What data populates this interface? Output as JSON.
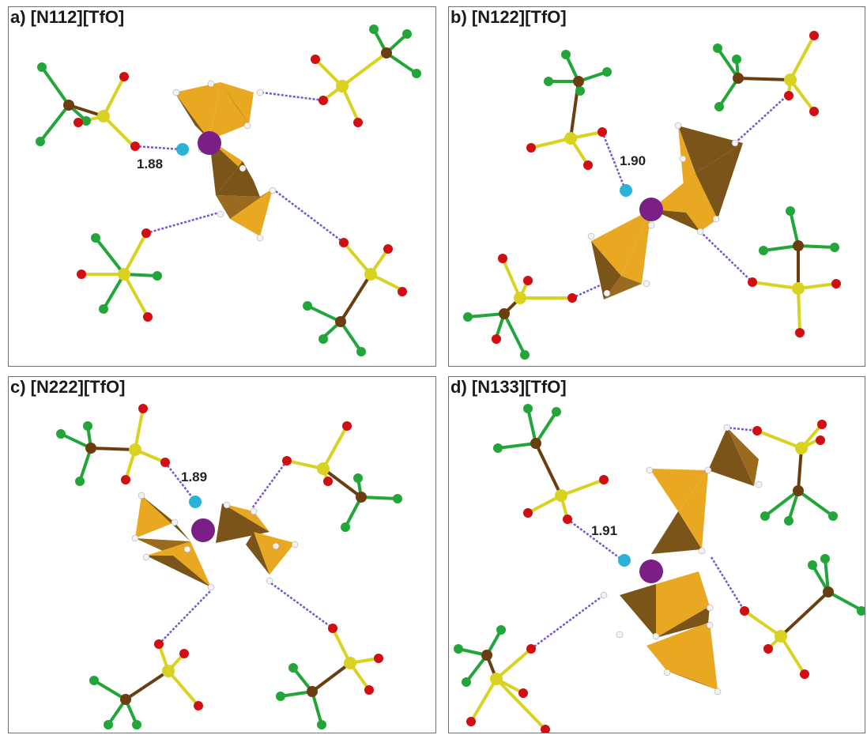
{
  "figure": {
    "panels": [
      {
        "id": "a",
        "title": "a) [N112][TfO]",
        "distance_label": "1.88"
      },
      {
        "id": "b",
        "title": "b) [N122][TfO]",
        "distance_label": "1.90"
      },
      {
        "id": "c",
        "title": "c) [N222][TfO]",
        "distance_label": "1.89"
      },
      {
        "id": "d",
        "title": "d) [N133][TfO]",
        "distance_label": "1.91"
      }
    ]
  },
  "colors": {
    "nitrogen": "#7a1f86",
    "hydrogen_acidic": "#2ab3d6",
    "hydrogen": "#f2f2f2",
    "oxygen": "#d10e12",
    "sulfur": "#d9d221",
    "carbon": "#6b3e12",
    "fluorine": "#22a63a",
    "tetrahedron_light": "#e9a822",
    "tetrahedron_dark": "#7a5418",
    "hbond": "#7b55c9"
  }
}
